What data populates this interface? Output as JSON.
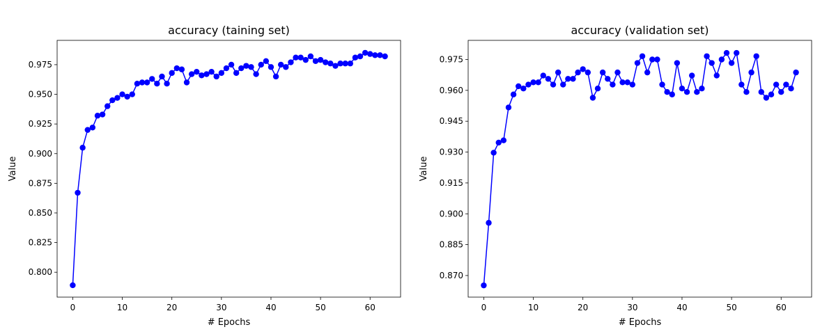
{
  "chart_data": [
    {
      "type": "line",
      "title": "accuracy (taining set)",
      "xlabel": "# Epochs",
      "ylabel": "Value",
      "xlim": [
        -3.15,
        66.15
      ],
      "ylim": [
        0.779,
        0.9955
      ],
      "xticks": [
        0,
        10,
        20,
        30,
        40,
        50,
        60
      ],
      "xtick_labels": [
        "0",
        "10",
        "20",
        "30",
        "40",
        "50",
        "60"
      ],
      "yticks": [
        0.8,
        0.825,
        0.85,
        0.875,
        0.9,
        0.925,
        0.95,
        0.975
      ],
      "ytick_labels": [
        "0.800",
        "0.825",
        "0.850",
        "0.875",
        "0.900",
        "0.925",
        "0.950",
        "0.975"
      ],
      "grid": false,
      "color": "#0000ff",
      "marker": "circle",
      "series": [
        {
          "x": [
            0,
            1,
            2,
            3,
            4,
            5,
            6,
            7,
            8,
            9,
            10,
            11,
            12,
            13,
            14,
            15,
            16,
            17,
            18,
            19,
            20,
            21,
            22,
            23,
            24,
            25,
            26,
            27,
            28,
            29,
            30,
            31,
            32,
            33,
            34,
            35,
            36,
            37,
            38,
            39,
            40,
            41,
            42,
            43,
            44,
            45,
            46,
            47,
            48,
            49,
            50,
            51,
            52,
            53,
            54,
            55,
            56,
            57,
            58,
            59,
            60,
            61,
            62,
            63
          ],
          "values": [
            0.789,
            0.867,
            0.905,
            0.92,
            0.922,
            0.932,
            0.933,
            0.94,
            0.945,
            0.947,
            0.95,
            0.948,
            0.95,
            0.959,
            0.96,
            0.96,
            0.963,
            0.959,
            0.965,
            0.959,
            0.968,
            0.972,
            0.971,
            0.96,
            0.967,
            0.969,
            0.966,
            0.967,
            0.969,
            0.965,
            0.968,
            0.972,
            0.975,
            0.968,
            0.972,
            0.974,
            0.973,
            0.967,
            0.975,
            0.978,
            0.973,
            0.965,
            0.975,
            0.973,
            0.977,
            0.981,
            0.981,
            0.979,
            0.982,
            0.978,
            0.979,
            0.977,
            0.976,
            0.974,
            0.976,
            0.976,
            0.976,
            0.981,
            0.982,
            0.985,
            0.984,
            0.983,
            0.983,
            0.982
          ]
        }
      ]
    },
    {
      "type": "line",
      "title": "accuracy (validation set)",
      "xlabel": "# Epochs",
      "ylabel": "Value",
      "xlim": [
        -3.15,
        66.15
      ],
      "ylim": [
        0.8595,
        0.9843
      ],
      "xticks": [
        0,
        10,
        20,
        30,
        40,
        50,
        60
      ],
      "xtick_labels": [
        "0",
        "10",
        "20",
        "30",
        "40",
        "50",
        "60"
      ],
      "yticks": [
        0.87,
        0.885,
        0.9,
        0.915,
        0.93,
        0.945,
        0.96,
        0.975
      ],
      "ytick_labels": [
        "0.870",
        "0.885",
        "0.900",
        "0.915",
        "0.930",
        "0.945",
        "0.960",
        "0.975"
      ],
      "grid": false,
      "color": "#0000ff",
      "marker": "circle",
      "series": [
        {
          "x": [
            0,
            1,
            2,
            3,
            4,
            5,
            6,
            7,
            8,
            9,
            10,
            11,
            12,
            13,
            14,
            15,
            16,
            17,
            18,
            19,
            20,
            21,
            22,
            23,
            24,
            25,
            26,
            27,
            28,
            29,
            30,
            31,
            32,
            33,
            34,
            35,
            36,
            37,
            38,
            39,
            40,
            41,
            42,
            43,
            44,
            45,
            46,
            47,
            48,
            49,
            50,
            51,
            52,
            53,
            54,
            55,
            56,
            57,
            58,
            59,
            60,
            61,
            62,
            63
          ],
          "values": [
            0.8652,
            0.8956,
            0.9297,
            0.9346,
            0.9357,
            0.9517,
            0.958,
            0.962,
            0.9609,
            0.9628,
            0.9639,
            0.9639,
            0.9672,
            0.9656,
            0.9628,
            0.9687,
            0.9628,
            0.9656,
            0.9656,
            0.9687,
            0.9703,
            0.9687,
            0.9564,
            0.9609,
            0.9687,
            0.9656,
            0.9628,
            0.9687,
            0.9639,
            0.9639,
            0.9628,
            0.9733,
            0.9766,
            0.9687,
            0.975,
            0.975,
            0.9628,
            0.9592,
            0.958,
            0.9733,
            0.9609,
            0.9592,
            0.9672,
            0.9592,
            0.9609,
            0.9766,
            0.9733,
            0.9672,
            0.975,
            0.9782,
            0.9733,
            0.9782,
            0.9628,
            0.9592,
            0.9687,
            0.9766,
            0.9592,
            0.9564,
            0.958,
            0.9628,
            0.9592,
            0.9628,
            0.9609,
            0.9687
          ]
        }
      ]
    }
  ]
}
